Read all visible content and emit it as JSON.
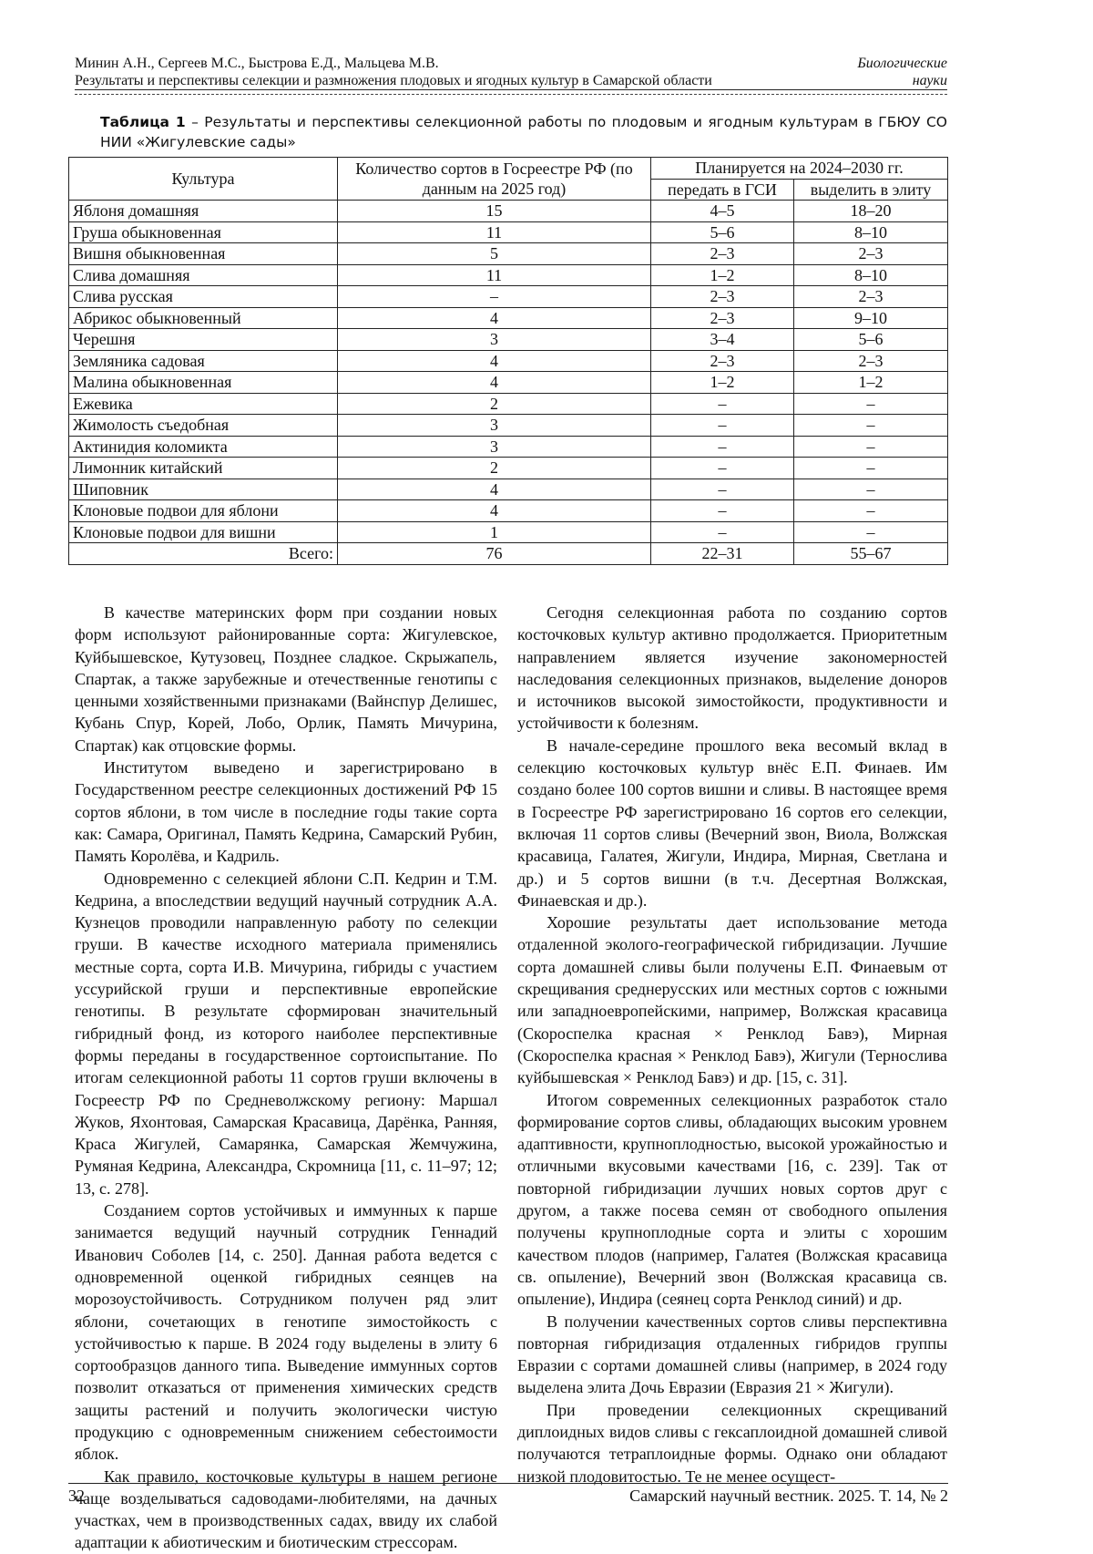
{
  "header": {
    "authors": "Минин А.Н., Сергеев М.С., Быстрова Е.Д., Мальцева М.В.",
    "article_title": "Результаты и перспективы селекции и размножения плодовых и ягодных культур в Самарской области",
    "section_line1": "Биологические",
    "section_line2": "науки"
  },
  "table_caption": {
    "label": "Таблица 1",
    "text": " – Результаты и перспективы селекционной работы по плодовым и ягодным культурам в ГБЮУ СО НИИ «Жигулевские сады»"
  },
  "table": {
    "headers": {
      "culture": "Культура",
      "count": "Количество сортов в Госреестре РФ (по данным на 2025 год)",
      "planned": "Планируется на 2024–2030 гг.",
      "gsi": "передать в ГСИ",
      "elite": "выделить в элиту"
    },
    "rows": [
      [
        "Яблоня домашняя",
        "15",
        "4–5",
        "18–20"
      ],
      [
        "Груша обыкновенная",
        "11",
        "5–6",
        "8–10"
      ],
      [
        "Вишня обыкновенная",
        "5",
        "2–3",
        "2–3"
      ],
      [
        "Слива домашняя",
        "11",
        "1–2",
        "8–10"
      ],
      [
        "Слива русская",
        "–",
        "2–3",
        "2–3"
      ],
      [
        "Абрикос обыкновенный",
        "4",
        "2–3",
        "9–10"
      ],
      [
        "Черешня",
        "3",
        "3–4",
        "5–6"
      ],
      [
        "Земляника садовая",
        "4",
        "2–3",
        "2–3"
      ],
      [
        "Малина обыкновенная",
        "4",
        "1–2",
        "1–2"
      ],
      [
        "Ежевика",
        "2",
        "–",
        "–"
      ],
      [
        "Жимолость съедобная",
        "3",
        "–",
        "–"
      ],
      [
        "Актинидия коломикта",
        "3",
        "–",
        "–"
      ],
      [
        "Лимонник китайский",
        "2",
        "–",
        "–"
      ],
      [
        "Шиповник",
        "4",
        "–",
        "–"
      ],
      [
        "Клоновые подвои для яблони",
        "4",
        "–",
        "–"
      ],
      [
        "Клоновые подвои для вишни",
        "1",
        "–",
        "–"
      ]
    ],
    "total": [
      "Всего:",
      "76",
      "22–31",
      "55–67"
    ]
  },
  "left_column": [
    "В качестве материнских форм при создании новых форм используют районированные сорта: Жигулевское, Куйбышевское, Кутузовец, Позднее сладкое. Скрыжапель, Спартак, а также зарубежные и отечественные генотипы с ценными хозяйственными признаками (Вайнспур Делишес, Кубань Спур, Корей, Лобо, Орлик, Память Мичурина, Спартак) как отцовские формы.",
    "Институтом выведено и зарегистрировано в Государственном реестре селекционных достижений РФ 15 сортов яблони, в том числе в последние годы такие сорта как: Самара, Оригинал, Память Кедрина, Самарский Рубин, Память Королёва, и Кадриль.",
    "Одновременно с селекцией яблони С.П. Кедрин и Т.М. Кедрина, а впоследствии ведущий научный сотрудник А.А. Кузнецов проводили направленную работу по селекции груши. В качестве исходного материала применялись местные сорта, сорта И.В. Мичурина, гибриды с участием уссурийской груши и перспективные европейские генотипы. В результате сформирован значительный гибридный фонд, из которого наиболее перспективные формы переданы в государственное сортоиспытание. По итогам селекционной работы 11 сортов груши включены в Госреестр РФ по Средневолжскому региону: Маршал Жуков, Яхонтовая, Самарская Красавица, Дарёнка, Ранняя, Краса Жигулей, Самарянка, Самарская Жемчужина, Румяная Кедрина, Александра, Скромница [11, с. 11–97; 12; 13, с. 278].",
    "Созданием сортов устойчивых и иммунных к парше занимается ведущий научный сотрудник Геннадий Иванович Соболев [14, с. 250]. Данная работа ведется с одновременной оценкой гибридных сеянцев на морозоустойчивость. Сотрудником получен ряд элит яблони, сочетающих в генотипе зимостойкость с устойчивостью к парше. В 2024 году выделены в элиту 6 сортообразцов данного типа. Выведение иммунных сортов позволит отказаться от применения химических средств защиты растений и получить экологически чистую продукцию с одновременным снижением себестоимости яблок.",
    "Как правило, косточковые культуры в нашем регионе чаще возделываться садоводами-любителями, на дачных участках, чем в производственных садах, ввиду их слабой адаптации к абиотическим и биотическим стрессорам."
  ],
  "right_column": [
    "Сегодня селекционная работа по созданию сортов косточковых культур активно продолжается. Приоритетным направлением является изучение закономерностей наследования селекционных признаков, выделение доноров и источников высокой зимостойкости, продуктивности и устойчивости к болезням.",
    "В начале-середине прошлого века весомый вклад в селекцию косточковых культур внёс Е.П. Финаев. Им создано более 100 сортов вишни и сливы. В настоящее время в Госреестре РФ зарегистрировано 16 сортов его селекции, включая 11 сортов сливы (Вечерний звон, Виола, Волжская красавица, Галатея, Жигули, Индира, Мирная, Светлана и др.) и 5 сортов вишни (в т.ч. Десертная Волжская, Финаевская и др.).",
    "Хорошие результаты дает использование метода отдаленной эколого-географической гибридизации. Лучшие сорта домашней сливы были получены Е.П. Финаевым от скрещивания среднерусских или местных сортов с южными или западноевропейскими, например, Волжская красавица (Скороспелка красная × Ренклод Бавэ), Мирная (Скороспелка красная × Ренклод Бавэ), Жигули (Тернослива куйбышевская × Ренклод Бавэ) и др. [15, с. 31].",
    "Итогом современных селекционных разработок стало формирование сортов сливы, обладающих высоким уровнем адаптивности, крупноплодностью, высокой урожайностью и отличными вкусовыми качествами [16, с. 239]. Так от повторной гибридизации лучших новых сортов друг с другом, а также посева семян от свободного опыления получены крупноплодные сорта и элиты с хорошим качеством плодов (например, Галатея (Волжская красавица св. опыление), Вечерний звон (Волжская красавица св. опыление), Индира (сеянец сорта Ренклод синий) и др.",
    "В получении качественных сортов сливы перспективна повторная гибридизация отдаленных гибридов группы Евразии с сортами домашней сливы (например, в 2024 году выделена элита Дочь Евразии (Евразия 21 × Жигули).",
    "При проведении селекционных скрещиваний диплоидных видов сливы с гексаплоидной домашней сливой получаются тетраплоидные формы. Однако они обладают низкой плодовитостью. Те не менее осущест-"
  ],
  "footer": {
    "page_number": "32",
    "journal": "Самарский научный вестник. 2025. Т. 14, № 2"
  }
}
